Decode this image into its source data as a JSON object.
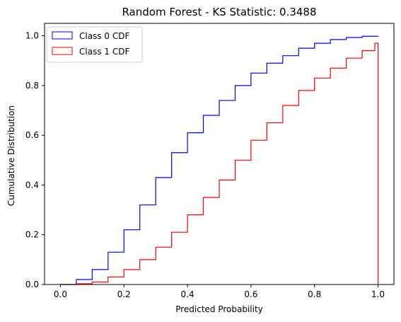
{
  "chart_data": {
    "type": "line",
    "title": "Random Forest - KS Statistic: 0.3488",
    "xlabel": "Predicted Probability",
    "ylabel": "Cumulative Distribution",
    "xlim": [
      -0.05,
      1.05
    ],
    "ylim": [
      0,
      1.05
    ],
    "xticks": [
      "0.0",
      "0.2",
      "0.4",
      "0.6",
      "0.8",
      "1.0"
    ],
    "yticks": [
      "0.0",
      "0.2",
      "0.4",
      "0.6",
      "0.8",
      "1.0"
    ],
    "grid": false,
    "legend_position": "top-left",
    "series": [
      {
        "name": "Class 0 CDF",
        "color": "#0000ff",
        "style": "step",
        "x": [
          0.0,
          0.05,
          0.1,
          0.15,
          0.2,
          0.25,
          0.3,
          0.35,
          0.4,
          0.45,
          0.5,
          0.55,
          0.6,
          0.65,
          0.7,
          0.75,
          0.8,
          0.85,
          0.9,
          0.95,
          1.0
        ],
        "y": [
          0.0,
          0.02,
          0.06,
          0.13,
          0.22,
          0.32,
          0.43,
          0.53,
          0.61,
          0.68,
          0.74,
          0.8,
          0.85,
          0.89,
          0.92,
          0.95,
          0.97,
          0.985,
          0.993,
          0.998,
          1.0
        ]
      },
      {
        "name": "Class 1 CDF",
        "color": "#ff0000",
        "style": "step",
        "x": [
          0.0,
          0.05,
          0.1,
          0.15,
          0.2,
          0.25,
          0.3,
          0.35,
          0.4,
          0.45,
          0.5,
          0.55,
          0.6,
          0.65,
          0.7,
          0.75,
          0.8,
          0.85,
          0.9,
          0.95,
          0.99,
          1.0
        ],
        "y": [
          0.0,
          0.003,
          0.01,
          0.03,
          0.06,
          0.1,
          0.15,
          0.21,
          0.28,
          0.35,
          0.42,
          0.5,
          0.58,
          0.65,
          0.72,
          0.78,
          0.83,
          0.87,
          0.91,
          0.94,
          0.97,
          0.0
        ]
      }
    ]
  }
}
